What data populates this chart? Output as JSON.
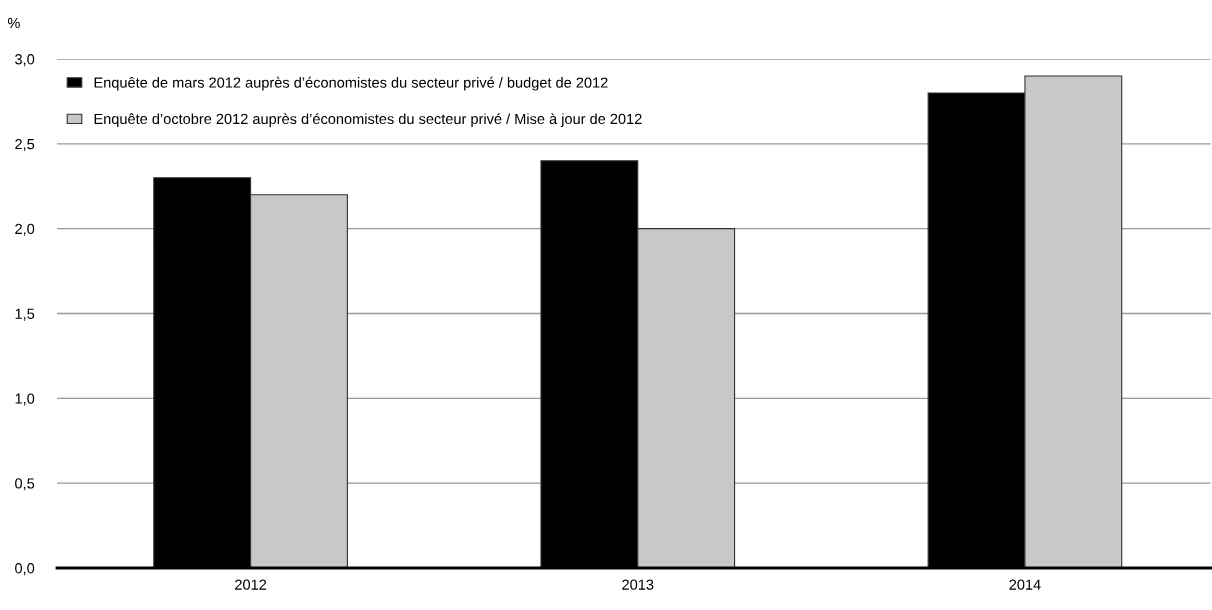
{
  "chart_data": {
    "type": "bar",
    "ylabel": "%",
    "categories": [
      "2012",
      "2013",
      "2014"
    ],
    "series": [
      {
        "name": "Enquête de mars 2012 auprès d’économistes du secteur privé / budget de 2012",
        "color": "#000000",
        "values": [
          2.3,
          2.4,
          2.8
        ]
      },
      {
        "name": "Enquête d’octobre 2012 auprès d’économistes du secteur privé / Mise à jour de 2012",
        "color": "#c8c8c8",
        "values": [
          2.2,
          2.0,
          2.9
        ]
      }
    ],
    "ylim": [
      0,
      3
    ],
    "yticks": [
      {
        "value": 0,
        "label": "0,0"
      },
      {
        "value": 0.5,
        "label": "0,5"
      },
      {
        "value": 1,
        "label": "1,0"
      },
      {
        "value": 1.5,
        "label": "1,5"
      },
      {
        "value": 2,
        "label": "2,0"
      },
      {
        "value": 2.5,
        "label": "2,5"
      },
      {
        "value": 3,
        "label": "3,0"
      }
    ],
    "grid": "y",
    "legend": "top left"
  }
}
